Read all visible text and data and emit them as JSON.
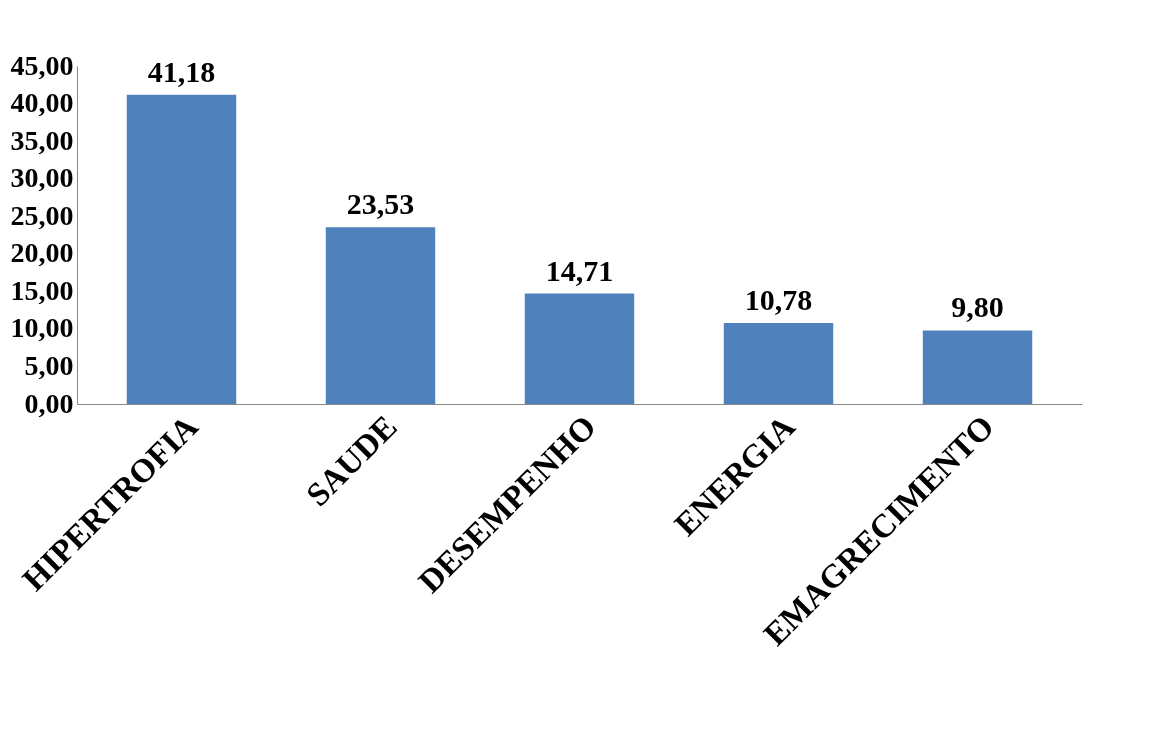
{
  "chart_data": {
    "type": "bar",
    "categories": [
      "HIPERTROFIA",
      "SAUDE",
      "DESEMPENHO",
      "ENERGIA",
      "EMAGRECIMENTO"
    ],
    "values": [
      41.18,
      23.53,
      14.71,
      10.78,
      9.8
    ],
    "value_labels": [
      "41,18",
      "23,53",
      "14,71",
      "10,78",
      "9,80"
    ],
    "color": "#4f81bd",
    "ylim": [
      0,
      45
    ],
    "yticks": [
      {
        "value": 0,
        "label": "0,00"
      },
      {
        "value": 5,
        "label": "5,00"
      },
      {
        "value": 10,
        "label": "10,00"
      },
      {
        "value": 15,
        "label": "15,00"
      },
      {
        "value": 20,
        "label": "20,00"
      },
      {
        "value": 25,
        "label": "25,00"
      },
      {
        "value": 30,
        "label": "30,00"
      },
      {
        "value": 35,
        "label": "35,00"
      },
      {
        "value": 40,
        "label": "40,00"
      },
      {
        "value": 45,
        "label": "45,00"
      }
    ],
    "grid": false,
    "legend": false
  }
}
